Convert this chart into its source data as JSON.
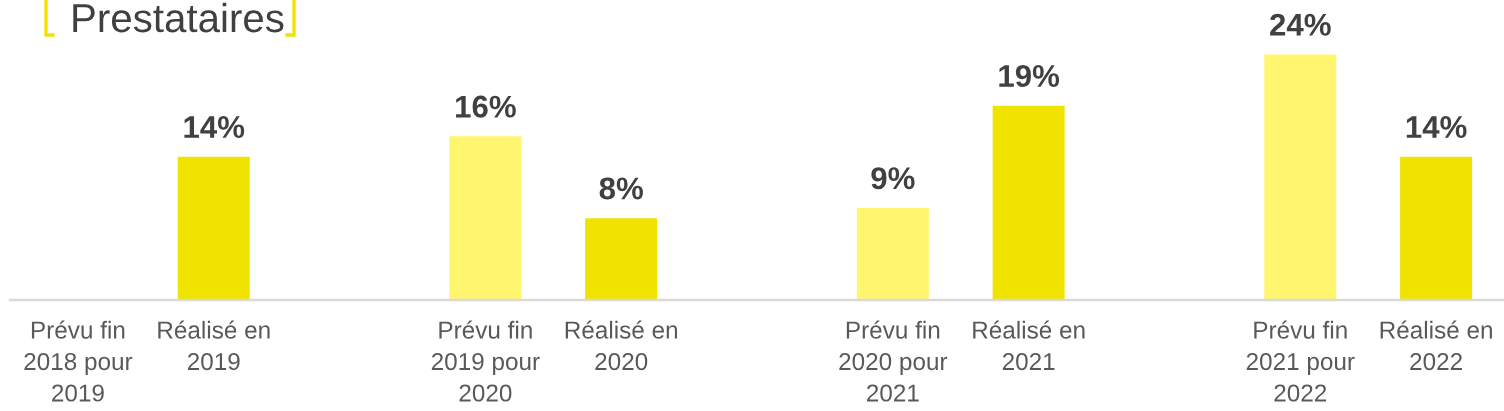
{
  "chart_data": {
    "type": "bar",
    "title": "Prestataires",
    "categories": [
      "Prévu fin\n2018 pour\n2019",
      "Réalisé en\n2019",
      null,
      "Prévu fin\n2019 pour\n2020",
      "Réalisé en\n2020",
      null,
      "Prévu fin\n2020 pour\n2021",
      "Réalisé en\n2021",
      null,
      "Prévu fin\n2021 pour\n2022",
      "Réalisé en\n2022"
    ],
    "values": [
      null,
      14,
      null,
      16,
      8,
      null,
      9,
      19,
      null,
      24,
      14
    ],
    "colors": [
      null,
      "#f0e300",
      null,
      "#fff56e",
      "#f0e300",
      null,
      "#fff56e",
      "#f0e300",
      null,
      "#fff56e",
      "#f0e300"
    ],
    "value_labels": [
      null,
      "14%",
      null,
      "16%",
      "8%",
      null,
      "9%",
      "19%",
      null,
      "24%",
      "14%"
    ]
  }
}
